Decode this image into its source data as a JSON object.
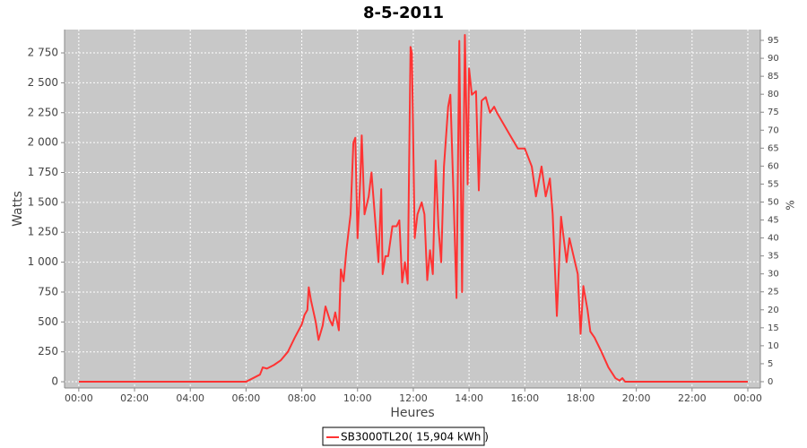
{
  "chart_data": {
    "type": "line",
    "title": "8-5-2011",
    "x_label": "Heures",
    "y_label": "Watts",
    "y2_label": "%",
    "x": [
      0,
      6.0,
      6.25,
      6.5,
      6.6,
      6.75,
      7.0,
      7.25,
      7.5,
      7.75,
      8.0,
      8.1,
      8.2,
      8.25,
      8.33,
      8.5,
      8.6,
      8.75,
      8.85,
      9.0,
      9.1,
      9.2,
      9.33,
      9.4,
      9.5,
      9.6,
      9.75,
      9.85,
      9.92,
      10.0,
      10.1,
      10.15,
      10.25,
      10.4,
      10.5,
      10.65,
      10.75,
      10.85,
      10.9,
      11.0,
      11.1,
      11.25,
      11.4,
      11.5,
      11.6,
      11.7,
      11.8,
      11.9,
      11.95,
      12.05,
      12.15,
      12.3,
      12.4,
      12.5,
      12.6,
      12.7,
      12.8,
      12.9,
      13.0,
      13.1,
      13.25,
      13.33,
      13.45,
      13.55,
      13.65,
      13.75,
      13.85,
      13.95,
      14.0,
      14.1,
      14.25,
      14.35,
      14.45,
      14.6,
      14.75,
      14.9,
      15.0,
      15.25,
      15.5,
      15.75,
      16.0,
      16.25,
      16.4,
      16.6,
      16.75,
      16.9,
      17.0,
      17.15,
      17.3,
      17.5,
      17.6,
      17.75,
      17.9,
      18.0,
      18.1,
      18.25,
      18.35,
      18.5,
      18.75,
      19.0,
      19.25,
      19.4,
      19.5,
      19.6,
      24.0
    ],
    "series": [
      {
        "name": "SB3000TL20( 15,904 kWh )",
        "color": "#ff3333",
        "values": [
          0,
          0,
          30,
          60,
          120,
          110,
          140,
          180,
          250,
          370,
          480,
          560,
          600,
          790,
          680,
          500,
          350,
          470,
          630,
          520,
          470,
          580,
          430,
          940,
          840,
          1100,
          1400,
          2000,
          2040,
          1200,
          1700,
          2060,
          1400,
          1550,
          1750,
          1300,
          1000,
          1610,
          900,
          1050,
          1050,
          1300,
          1300,
          1350,
          830,
          1000,
          820,
          2800,
          2750,
          1200,
          1400,
          1500,
          1400,
          850,
          1100,
          900,
          1850,
          1300,
          1000,
          1800,
          2300,
          2400,
          1500,
          700,
          2850,
          750,
          2900,
          1650,
          2620,
          2400,
          2430,
          1600,
          2350,
          2380,
          2250,
          2300,
          2250,
          2150,
          2050,
          1950,
          1950,
          1800,
          1550,
          1800,
          1550,
          1700,
          1400,
          550,
          1380,
          1000,
          1200,
          1050,
          900,
          400,
          800,
          600,
          420,
          370,
          250,
          120,
          30,
          10,
          30,
          0,
          0
        ]
      }
    ],
    "xlim": [
      -0.51,
      24.45
    ],
    "xticks": [
      {
        "value": 0,
        "label": "00:00"
      },
      {
        "value": 2,
        "label": "02:00"
      },
      {
        "value": 4,
        "label": "04:00"
      },
      {
        "value": 6,
        "label": "06:00"
      },
      {
        "value": 8,
        "label": "08:00"
      },
      {
        "value": 10,
        "label": "10:00"
      },
      {
        "value": 12,
        "label": "12:00"
      },
      {
        "value": 14,
        "label": "14:00"
      },
      {
        "value": 16,
        "label": "16:00"
      },
      {
        "value": 18,
        "label": "18:00"
      },
      {
        "value": 20,
        "label": "20:00"
      },
      {
        "value": 22,
        "label": "22:00"
      },
      {
        "value": 24,
        "label": "00:00"
      }
    ],
    "ylim": [
      -52,
      2945
    ],
    "yticks": [
      0,
      250,
      500,
      750,
      {
        "value": 1000,
        "label": "1 000"
      },
      {
        "value": 1250,
        "label": "1 250"
      },
      {
        "value": 1500,
        "label": "1 500"
      },
      {
        "value": 1750,
        "label": "1 750"
      },
      {
        "value": 2000,
        "label": "2 000"
      },
      {
        "value": 2250,
        "label": "2 250"
      },
      {
        "value": 2500,
        "label": "2 500"
      },
      {
        "value": 2750,
        "label": "2 750"
      }
    ],
    "y2lim": [
      -1.75,
      98
    ],
    "y2ticks": [
      0,
      5,
      10,
      15,
      20,
      25,
      30,
      35,
      40,
      45,
      50,
      55,
      60,
      65,
      70,
      75,
      80,
      85,
      90,
      95
    ],
    "grid": true
  }
}
